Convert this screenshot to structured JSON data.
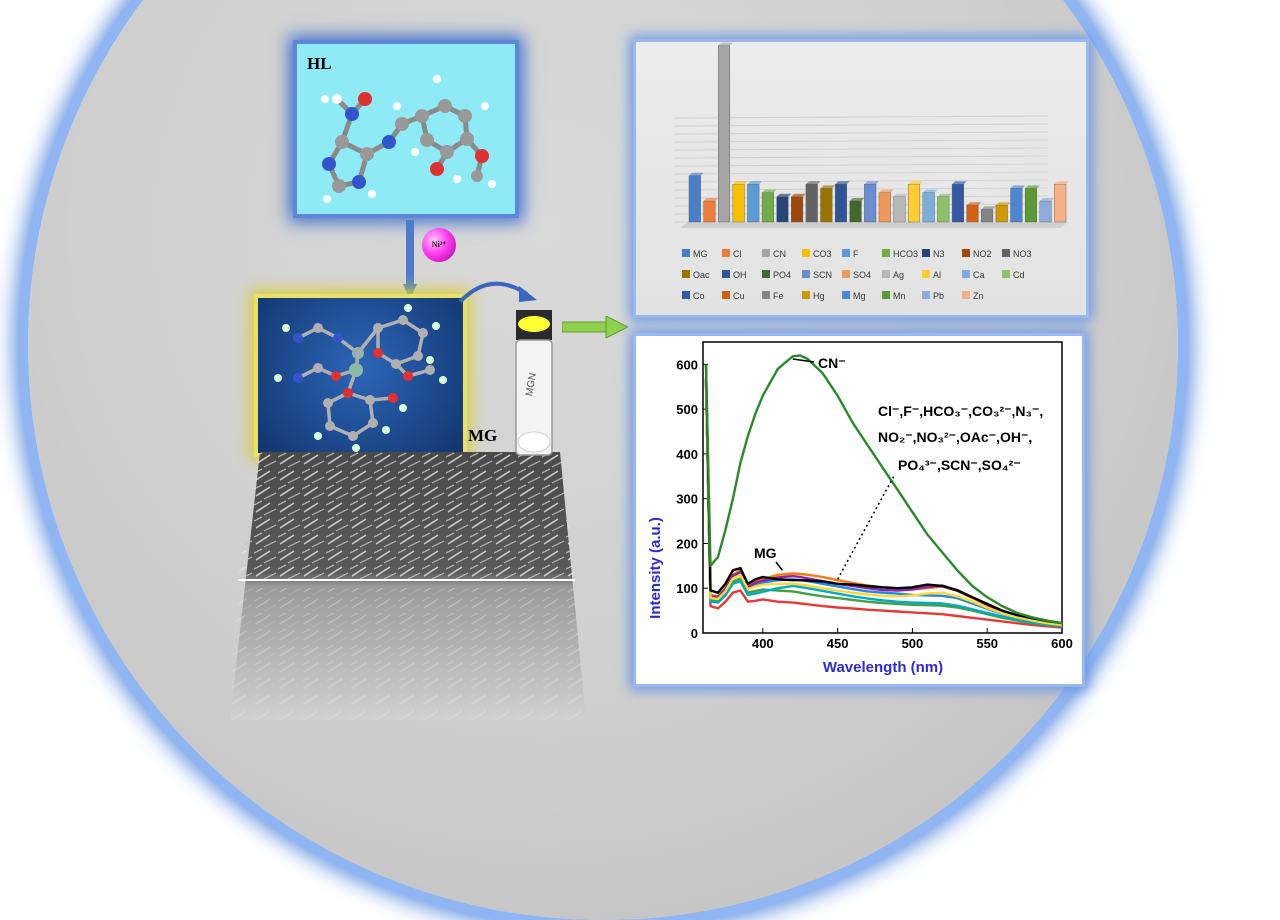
{
  "hl_label": "HL",
  "ni_label": "Ni²⁺",
  "mg_label": "MG",
  "vial_text": "MGN",
  "bar_chart_data": {
    "type": "bar",
    "legend": [
      "MG",
      "Cl",
      "CN",
      "CO3",
      "F",
      "HCO3",
      "N3",
      "NO2",
      "NO3",
      "Oac",
      "OH",
      "PO4",
      "SCN",
      "SO4",
      "Ag",
      "Al",
      "Ca",
      "Cd",
      "Co",
      "Cu",
      "Fe",
      "Hg",
      "Mg",
      "Mn",
      "Pb",
      "Zn"
    ],
    "values": [
      0.11,
      0.05,
      0.42,
      0.09,
      0.09,
      0.07,
      0.06,
      0.06,
      0.09,
      0.08,
      0.09,
      0.05,
      0.09,
      0.07,
      0.06,
      0.09,
      0.07,
      0.06,
      0.09,
      0.04,
      0.03,
      0.04,
      0.08,
      0.08,
      0.05,
      0.09
    ],
    "colors": [
      "#4a7fc8",
      "#ee7d3c",
      "#a5a5a5",
      "#f5c000",
      "#5b9bd5",
      "#70ad47",
      "#264478",
      "#9e480e",
      "#636363",
      "#997300",
      "#2f5597",
      "#43682b",
      "#698ed0",
      "#f1975a",
      "#b7b7b7",
      "#ffcd33",
      "#7caedd",
      "#8cc168",
      "#335aa1",
      "#d26012",
      "#848484",
      "#cc9a00",
      "#4e87d1",
      "#5c9a36",
      "#8faadc",
      "#f4b183"
    ]
  },
  "spectrum": {
    "xlabel": "Wavelength (nm)",
    "ylabel": "Intensity (a.u.)",
    "xlim": [
      360,
      600
    ],
    "ylim": [
      0,
      650
    ],
    "xticks": [
      "400",
      "450",
      "500",
      "550",
      "600"
    ],
    "yticks": [
      "0",
      "100",
      "200",
      "300",
      "400",
      "500",
      "600"
    ],
    "cn_label": "CN⁻",
    "mg_label": "MG",
    "anion_line1": "Cl⁻,F⁻,HCO₃⁻,CO₃²⁻,N₃⁻,",
    "anion_line2": "NO₂⁻,NO₃²⁻,OAc⁻,OH⁻,",
    "anion_line3": "PO₄³⁻,SCN⁻,SO₄²⁻"
  },
  "chart_data": {
    "type": "line",
    "xlabel": "Wavelength (nm)",
    "ylabel": "Intensity (a.u.)",
    "xlim": [
      360,
      600
    ],
    "ylim": [
      0,
      650
    ],
    "x": [
      362,
      365,
      370,
      375,
      380,
      385,
      390,
      395,
      400,
      410,
      420,
      425,
      430,
      440,
      450,
      460,
      470,
      480,
      490,
      500,
      510,
      520,
      530,
      540,
      550,
      560,
      570,
      580,
      590,
      600
    ],
    "series": [
      {
        "name": "CN⁻",
        "color": "#2a8a2a",
        "values": [
          600,
          150,
          170,
          230,
          300,
          380,
          440,
          490,
          530,
          590,
          618,
          620,
          612,
          580,
          530,
          470,
          420,
          370,
          320,
          270,
          220,
          180,
          140,
          105,
          80,
          60,
          45,
          35,
          28,
          22
        ]
      },
      {
        "name": "MG",
        "color": "#000000",
        "values": [
          600,
          95,
          90,
          110,
          140,
          145,
          110,
          120,
          125,
          120,
          118,
          118,
          117,
          115,
          110,
          108,
          105,
          102,
          100,
          102,
          108,
          105,
          95,
          80,
          65,
          50,
          40,
          33,
          27,
          22
        ]
      },
      {
        "color": "#e53935",
        "values": [
          560,
          60,
          55,
          70,
          90,
          95,
          70,
          72,
          75,
          70,
          68,
          66,
          64,
          60,
          57,
          55,
          52,
          50,
          48,
          46,
          44,
          42,
          38,
          34,
          30,
          26,
          22,
          18,
          15,
          12
        ]
      },
      {
        "color": "#f57c00",
        "values": [
          570,
          85,
          82,
          100,
          130,
          140,
          105,
          115,
          120,
          130,
          133,
          132,
          130,
          125,
          118,
          112,
          106,
          102,
          100,
          98,
          100,
          104,
          94,
          78,
          62,
          48,
          38,
          30,
          25,
          20
        ]
      },
      {
        "color": "#1e88e5",
        "values": [
          565,
          80,
          78,
          95,
          125,
          132,
          100,
          108,
          113,
          118,
          120,
          118,
          116,
          110,
          104,
          98,
          93,
          90,
          88,
          85,
          84,
          83,
          78,
          66,
          54,
          43,
          35,
          28,
          22,
          18
        ]
      },
      {
        "color": "#43a047",
        "values": [
          565,
          75,
          72,
          88,
          115,
          122,
          90,
          94,
          97,
          95,
          93,
          90,
          87,
          82,
          78,
          74,
          70,
          67,
          65,
          63,
          62,
          61,
          57,
          50,
          42,
          34,
          28,
          22,
          18,
          15
        ]
      },
      {
        "color": "#8e24aa",
        "values": [
          568,
          82,
          80,
          98,
          128,
          136,
          102,
          112,
          117,
          124,
          127,
          125,
          122,
          116,
          110,
          105,
          100,
          96,
          95,
          97,
          103,
          106,
          96,
          80,
          63,
          49,
          38,
          30,
          24,
          19
        ]
      },
      {
        "color": "#00acc1",
        "values": [
          562,
          70,
          68,
          84,
          110,
          116,
          85,
          88,
          92,
          100,
          105,
          103,
          100,
          94,
          88,
          82,
          77,
          73,
          70,
          68,
          67,
          66,
          61,
          53,
          45,
          37,
          30,
          24,
          19,
          15
        ]
      },
      {
        "color": "#fdd835",
        "values": [
          566,
          78,
          76,
          93,
          122,
          130,
          98,
          104,
          108,
          110,
          110,
          108,
          106,
          100,
          95,
          90,
          86,
          83,
          82,
          84,
          88,
          90,
          82,
          70,
          56,
          44,
          35,
          28,
          22,
          18
        ]
      }
    ]
  }
}
